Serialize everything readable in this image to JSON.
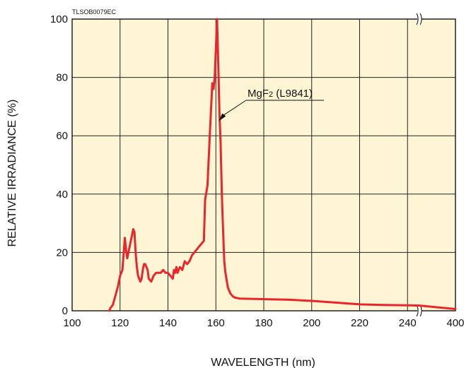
{
  "chart_data": {
    "type": "line",
    "code_label": "TLSOB0079EC",
    "xlabel": "WAVELENGTH (nm)",
    "ylabel": "RELATIVE IRRADIANCE (%)",
    "xlim": [
      100,
      400
    ],
    "ylim": [
      0,
      100
    ],
    "x_ticks": [
      "100",
      "120",
      "140",
      "160",
      "180",
      "200",
      "220",
      "240",
      "400"
    ],
    "y_ticks": [
      "0",
      "20",
      "40",
      "60",
      "80",
      "100"
    ],
    "axis_break_between": [
      245,
      400
    ],
    "grid": true,
    "background_color": "#FDF5D3",
    "grid_color": "#222222",
    "annotation": {
      "text_main": "MgF",
      "text_sub": "2",
      "text_rest": " (L9841)"
    },
    "series": [
      {
        "color": "#E8262C",
        "points": [
          [
            115.5,
            0
          ],
          [
            116,
            1
          ],
          [
            117,
            2
          ],
          [
            118,
            5
          ],
          [
            119,
            8
          ],
          [
            120,
            12
          ],
          [
            121,
            14
          ],
          [
            122,
            25
          ],
          [
            122.5,
            21
          ],
          [
            123,
            18
          ],
          [
            123.5,
            20
          ],
          [
            124.5,
            24
          ],
          [
            125.5,
            28
          ],
          [
            126,
            27
          ],
          [
            126.5,
            20
          ],
          [
            127,
            15
          ],
          [
            127.5,
            12
          ],
          [
            128.5,
            10
          ],
          [
            129,
            11
          ],
          [
            129.5,
            14
          ],
          [
            130,
            16
          ],
          [
            130.5,
            16
          ],
          [
            131,
            15
          ],
          [
            131.5,
            14
          ],
          [
            132,
            11
          ],
          [
            133,
            10
          ],
          [
            134,
            12
          ],
          [
            135,
            13
          ],
          [
            136,
            13
          ],
          [
            137,
            13
          ],
          [
            138,
            14
          ],
          [
            139,
            13
          ],
          [
            140,
            13
          ],
          [
            141,
            12
          ],
          [
            142,
            11
          ],
          [
            142.5,
            14
          ],
          [
            143,
            13
          ],
          [
            143.5,
            15
          ],
          [
            144,
            13
          ],
          [
            145,
            15
          ],
          [
            146,
            14
          ],
          [
            147,
            17
          ],
          [
            148,
            16
          ],
          [
            149,
            17
          ],
          [
            150,
            19
          ],
          [
            151,
            20
          ],
          [
            152,
            21
          ],
          [
            153,
            22
          ],
          [
            154,
            23
          ],
          [
            155,
            24
          ],
          [
            155.5,
            38
          ],
          [
            156.5,
            43
          ],
          [
            157.5,
            61
          ],
          [
            158.5,
            78
          ],
          [
            159,
            76
          ],
          [
            159.5,
            80
          ],
          [
            160,
            90
          ],
          [
            160.5,
            100
          ],
          [
            161,
            85
          ],
          [
            161.5,
            68
          ],
          [
            162,
            57
          ],
          [
            162.5,
            40
          ],
          [
            163,
            28
          ],
          [
            163.5,
            17
          ],
          [
            164,
            13
          ],
          [
            165,
            8
          ],
          [
            166,
            6
          ],
          [
            167,
            5
          ],
          [
            168,
            4.5
          ],
          [
            170,
            4.2
          ],
          [
            175,
            4.1
          ],
          [
            180,
            4.0
          ],
          [
            190,
            3.8
          ],
          [
            200,
            3.4
          ],
          [
            210,
            2.8
          ],
          [
            220,
            2.2
          ],
          [
            230,
            2.0
          ],
          [
            240,
            1.9
          ],
          [
            245,
            1.8
          ],
          [
            400,
            0.6
          ]
        ]
      }
    ]
  }
}
